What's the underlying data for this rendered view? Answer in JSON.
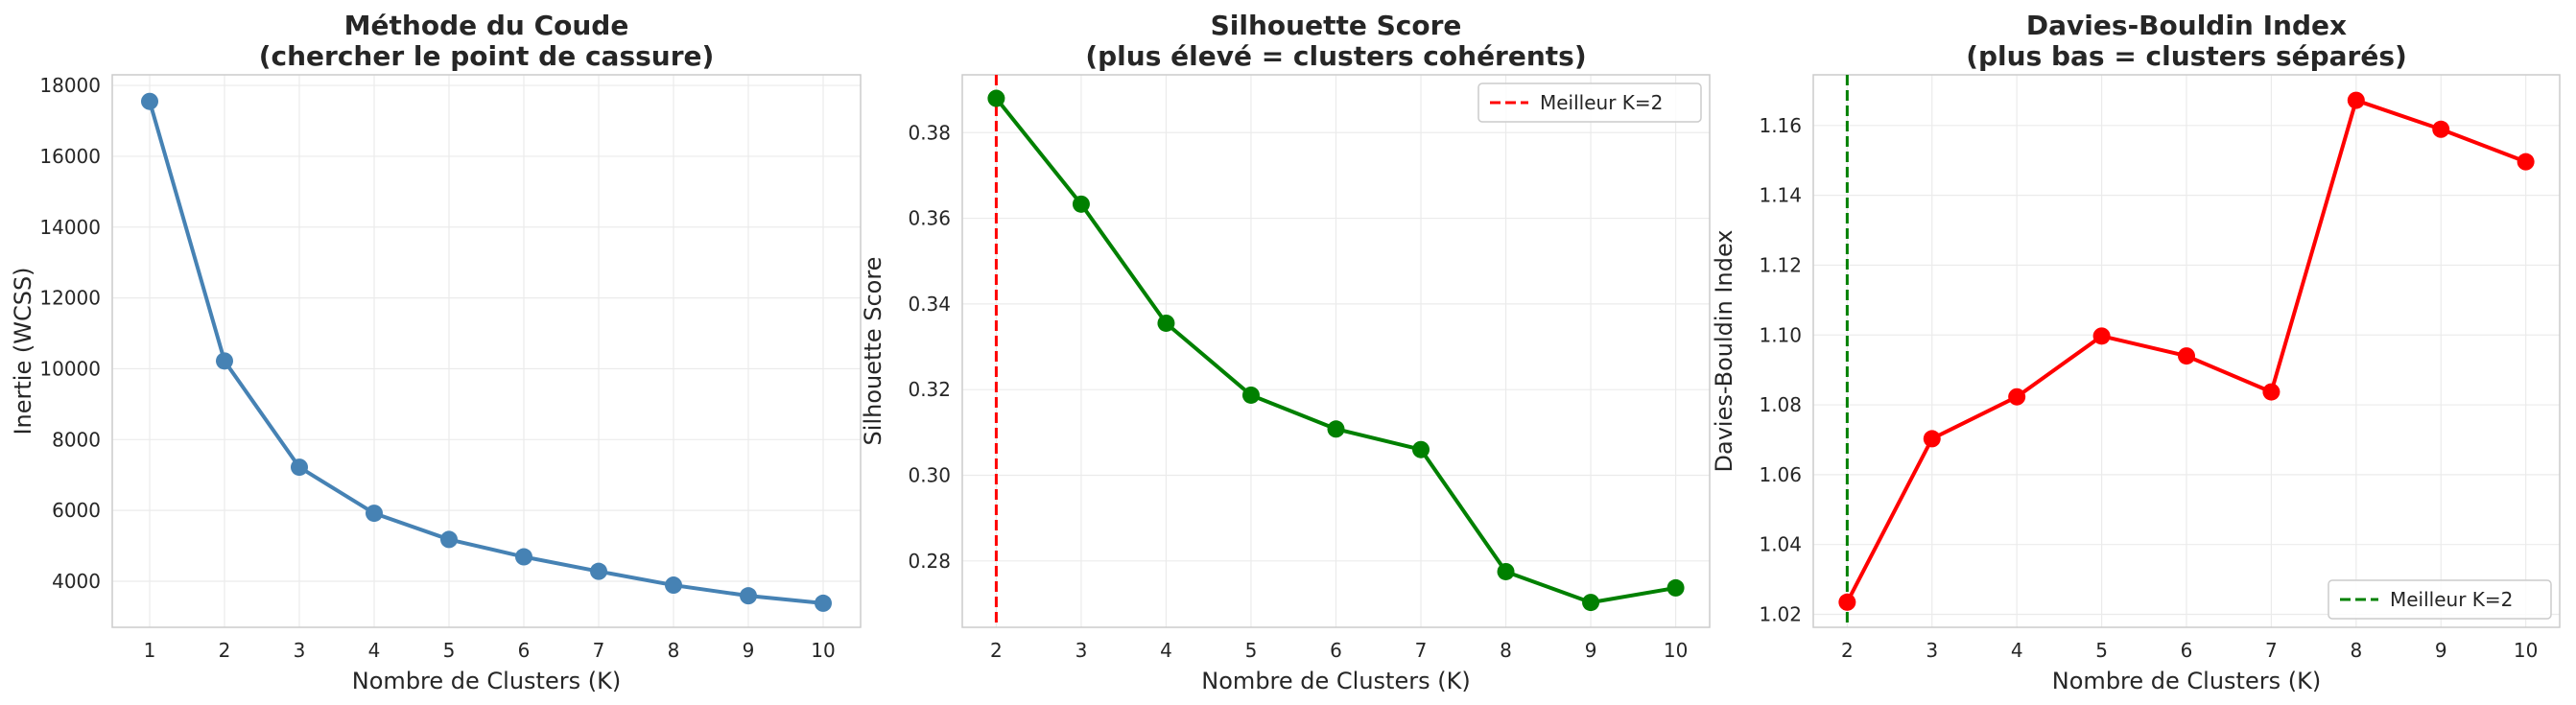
{
  "chart_data": [
    {
      "type": "line",
      "title": "Méthode du Coude",
      "subtitle": "(chercher le point de cassure)",
      "xlabel": "Nombre de Clusters (K)",
      "ylabel": "Inertie (WCSS)",
      "x": [
        1,
        2,
        3,
        4,
        5,
        6,
        7,
        8,
        9,
        10
      ],
      "y": [
        17550,
        10220,
        7220,
        5920,
        5180,
        4690,
        4280,
        3890,
        3590,
        3380
      ],
      "xlim": [
        0.5,
        10.5
      ],
      "ylim": [
        2700,
        18300
      ],
      "xticks": [
        "1",
        "2",
        "3",
        "4",
        "5",
        "6",
        "7",
        "8",
        "9",
        "10"
      ],
      "yticks": [
        4000,
        6000,
        8000,
        10000,
        12000,
        14000,
        16000,
        18000
      ],
      "ytick_labels": [
        "4000",
        "6000",
        "8000",
        "10000",
        "12000",
        "14000",
        "16000",
        "18000"
      ],
      "color": "#4682b4",
      "grid": true
    },
    {
      "type": "line",
      "title": "Silhouette Score",
      "subtitle": "(plus élevé = clusters cohérents)",
      "xlabel": "Nombre de Clusters (K)",
      "ylabel": "Silhouette Score",
      "x": [
        2,
        3,
        4,
        5,
        6,
        7,
        8,
        9,
        10
      ],
      "y": [
        0.388,
        0.3633,
        0.3355,
        0.3187,
        0.3108,
        0.306,
        0.2775,
        0.2703,
        0.2737
      ],
      "xlim": [
        1.6,
        10.4
      ],
      "ylim": [
        0.2645,
        0.3935
      ],
      "xticks": [
        "2",
        "3",
        "4",
        "5",
        "6",
        "7",
        "8",
        "9",
        "10"
      ],
      "yticks": [
        0.28,
        0.3,
        0.32,
        0.34,
        0.36,
        0.38
      ],
      "ytick_labels": [
        "0.28",
        "0.30",
        "0.32",
        "0.34",
        "0.36",
        "0.38"
      ],
      "color": "#008000",
      "vline": {
        "x": 2,
        "color": "#ff0000",
        "label": "Meilleur K=2"
      },
      "legend": "top-right",
      "grid": true
    },
    {
      "type": "line",
      "title": "Davies-Bouldin Index",
      "subtitle": "(plus bas = clusters séparés)",
      "xlabel": "Nombre de Clusters (K)",
      "ylabel": "Davies-Bouldin Index",
      "x": [
        2,
        3,
        4,
        5,
        6,
        7,
        8,
        9,
        10
      ],
      "y": [
        1.0235,
        1.0703,
        1.0823,
        1.0997,
        1.094,
        1.0837,
        1.1672,
        1.1589,
        1.1496
      ],
      "xlim": [
        1.6,
        10.4
      ],
      "ylim": [
        1.0163,
        1.1745
      ],
      "xticks": [
        "2",
        "3",
        "4",
        "5",
        "6",
        "7",
        "8",
        "9",
        "10"
      ],
      "yticks": [
        1.02,
        1.04,
        1.06,
        1.08,
        1.1,
        1.12,
        1.14,
        1.16
      ],
      "ytick_labels": [
        "1.02",
        "1.04",
        "1.06",
        "1.08",
        "1.10",
        "1.12",
        "1.14",
        "1.16"
      ],
      "color": "#ff0000",
      "vline": {
        "x": 2,
        "color": "#008000",
        "label": "Meilleur K=2"
      },
      "legend": "bottom-right",
      "grid": true
    }
  ]
}
